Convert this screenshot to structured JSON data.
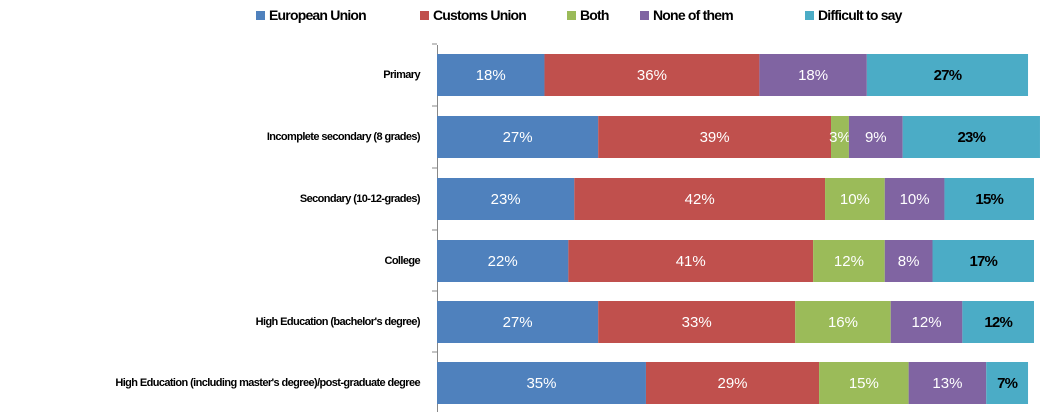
{
  "chart_data": {
    "type": "stacked-bar-horizontal",
    "categories": [
      "Primary",
      "Incomplete secondary (8 grades)",
      "Secondary (10-12-grades)",
      "College",
      "High Education (bachelor's  degree)",
      "High Education  (including master's degree)/post-graduate degree"
    ],
    "series": [
      {
        "name": "European Union",
        "color": "#4f81bd",
        "values": [
          18,
          27,
          23,
          22,
          27,
          35
        ],
        "value_labels": [
          "18%",
          "27%",
          "23%",
          "22%",
          "27%",
          "35%"
        ]
      },
      {
        "name": "Customs Union",
        "color": "#c0504d",
        "values": [
          36,
          39,
          42,
          41,
          33,
          29
        ],
        "value_labels": [
          "36%",
          "39%",
          "42%",
          "41%",
          "33%",
          "29%"
        ]
      },
      {
        "name": "Both",
        "color": "#9bbb59",
        "values": [
          0,
          3,
          10,
          12,
          16,
          15
        ],
        "value_labels": [
          null,
          "3%",
          "10%",
          "12%",
          "16%",
          "15%"
        ]
      },
      {
        "name": "None of them",
        "color": "#8064a2",
        "values": [
          18,
          9,
          10,
          8,
          12,
          13
        ],
        "value_labels": [
          "18%",
          "9%",
          "10%",
          "8%",
          "12%",
          "13%"
        ]
      },
      {
        "name": "Difficult to say",
        "color": "#4bacc6",
        "values": [
          27,
          23,
          15,
          17,
          12,
          7
        ],
        "value_labels": [
          "27%",
          "23%",
          "15%",
          "17%",
          "12%",
          "7%"
        ]
      }
    ]
  }
}
